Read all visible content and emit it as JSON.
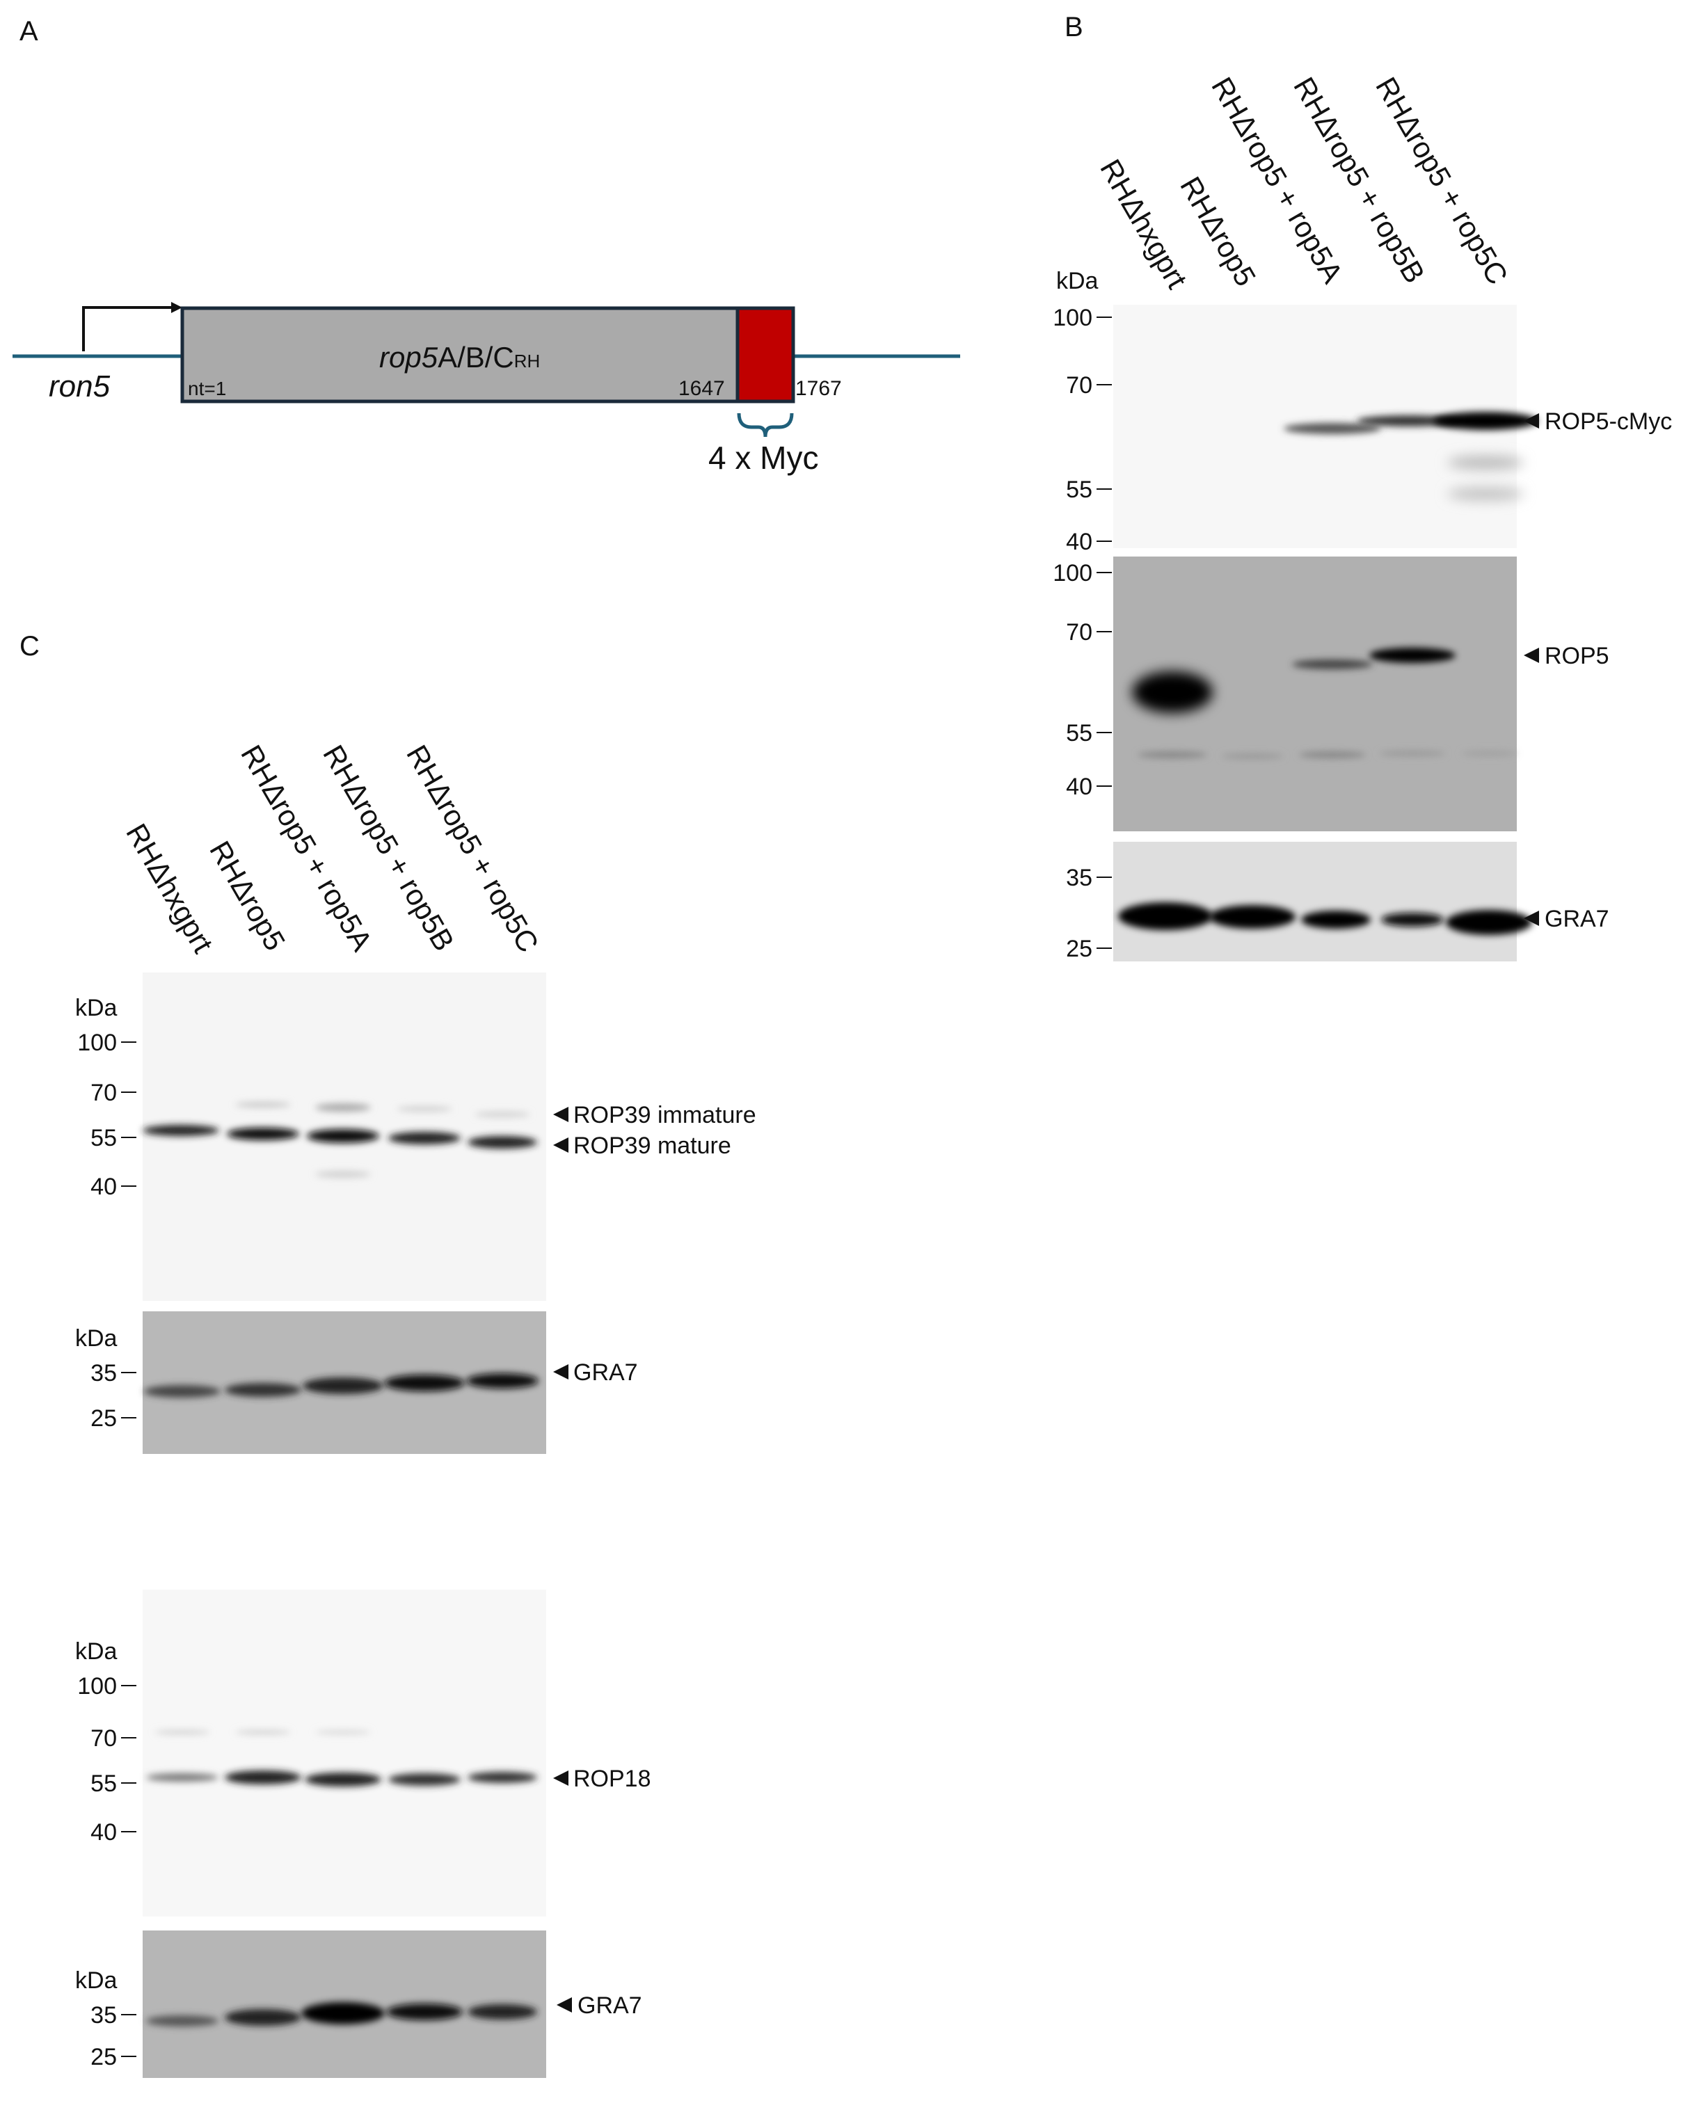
{
  "panels": {
    "a": {
      "letter": "A",
      "promoter": "ron5",
      "gene_prefix": "rop5",
      "gene_suffix": "A/B/C",
      "gene_sub": "RH",
      "nt_start": "nt=1",
      "nt_mid": "1647",
      "nt_end": "1767",
      "tag": "4 x Myc",
      "colors": {
        "line": "#1f5f7a",
        "gene": "#aaaaaa",
        "tag": "#c00000",
        "border": "#1a2a3a"
      }
    },
    "b": {
      "letter": "B",
      "lanes": [
        "RHΔhxgprt",
        "RHΔrop5",
        "RHΔrop5 + rop5A",
        "RHΔrop5 + rop5B",
        "RHΔrop5 + rop5C"
      ],
      "kda": "kDa",
      "blot1": {
        "markers": [
          "100",
          "70",
          "55",
          "40"
        ],
        "bands": [
          "ROP5-cMyc"
        ]
      },
      "blot2": {
        "markers": [
          "100",
          "70",
          "55",
          "40"
        ],
        "bands": [
          "ROP5"
        ]
      },
      "blot3": {
        "markers": [
          "35",
          "25"
        ],
        "bands": [
          "GRA7"
        ]
      }
    },
    "c": {
      "letter": "C",
      "lanes": [
        "RHΔhxgprt",
        "RHΔrop5",
        "RHΔrop5 + rop5A",
        "RHΔrop5 + rop5B",
        "RHΔrop5 + rop5C"
      ],
      "blot1": {
        "kda": "kDa",
        "markers": [
          "100",
          "70",
          "55",
          "40"
        ],
        "bands": [
          "ROP39 immature",
          "ROP39 mature"
        ]
      },
      "blot2": {
        "kda": "kDa",
        "markers": [
          "35",
          "25"
        ],
        "bands": [
          "GRA7"
        ]
      },
      "blot3": {
        "kda": "kDa",
        "markers": [
          "100",
          "70",
          "55",
          "40"
        ],
        "bands": [
          "ROP18"
        ]
      },
      "blot4": {
        "kda": "kDa",
        "markers": [
          "35",
          "25"
        ],
        "bands": [
          "GRA7"
        ]
      }
    }
  }
}
